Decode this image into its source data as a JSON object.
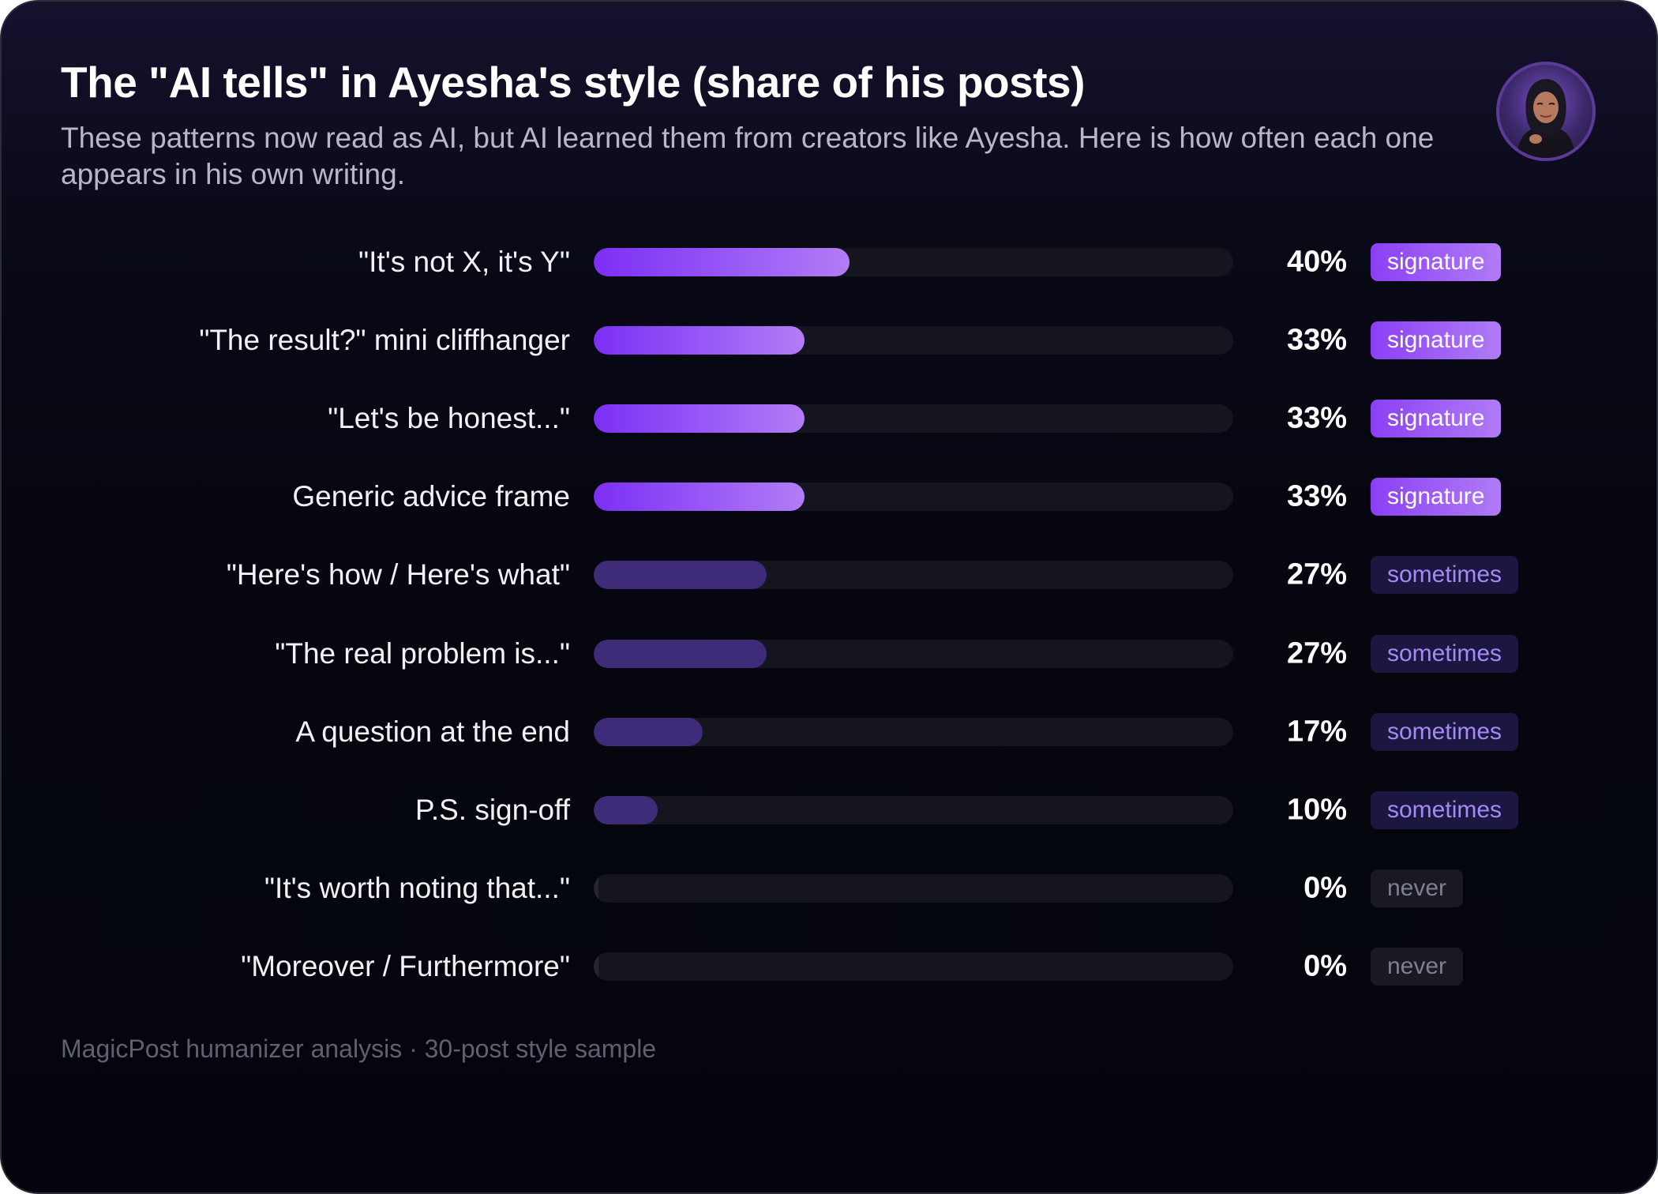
{
  "title": "The \"AI tells\" in Ayesha's style (share of his posts)",
  "subtitle": "These patterns now read as AI, but AI learned them from creators like Ayesha. Here is how often each one appears in his own writing.",
  "footer": "MagicPost humanizer analysis · 30-post style sample",
  "avatar": {
    "icon": "profile-photo-icon"
  },
  "colors": {
    "signature_start": "#7c2ff5",
    "signature_end": "#b27cf6",
    "sometimes": "#3e2c78",
    "sometimes_text": "#a58af5",
    "never": "#252634",
    "track": "#14151f",
    "background": "#05060f"
  },
  "chart_data": {
    "type": "bar",
    "orientation": "horizontal",
    "title": "The \"AI tells\" in Ayesha's style (share of his posts)",
    "xlim": [
      0,
      100
    ],
    "grid": false,
    "categories": [
      "\"It's not X, it's Y\"",
      "\"The result?\" mini cliffhanger",
      "\"Let's be honest...\"",
      "Generic advice frame",
      "\"Here's how / Here's what\"",
      "\"The real problem is...\"",
      "A question at the end",
      "P.S. sign-off",
      "\"It's worth noting that...\"",
      "\"Moreover / Furthermore\""
    ],
    "values": [
      40,
      33,
      33,
      33,
      27,
      27,
      17,
      10,
      0,
      0
    ],
    "value_labels": [
      "40%",
      "33%",
      "33%",
      "33%",
      "27%",
      "27%",
      "17%",
      "10%",
      "0%",
      "0%"
    ],
    "tags": [
      "signature",
      "signature",
      "signature",
      "signature",
      "sometimes",
      "sometimes",
      "sometimes",
      "sometimes",
      "never",
      "never"
    ]
  }
}
